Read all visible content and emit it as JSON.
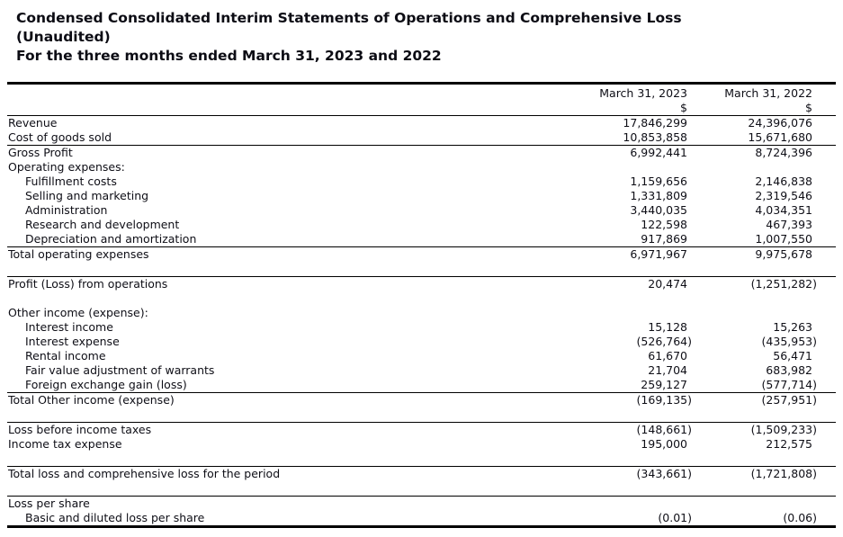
{
  "header": {
    "title_line1": "Condensed Consolidated Interim Statements of Operations and Comprehensive Loss",
    "title_line2": "(Unaudited)",
    "subtitle": "For the three months ended March 31, 2023 and 2022"
  },
  "statement": {
    "columns": [
      "March 31, 2023",
      "March 31, 2022"
    ],
    "currency_row": [
      "$",
      "$"
    ],
    "colors": {
      "text": "#0e0e16",
      "rule": "#000000",
      "background": "#ffffff"
    },
    "rows": [
      {
        "label": "Revenue",
        "values": [
          "17,846,299",
          "24,396,076"
        ]
      },
      {
        "label": "Cost of goods sold",
        "values": [
          "10,853,858",
          "15,671,680"
        ],
        "rule": true
      },
      {
        "label": "Gross Profit",
        "values": [
          "6,992,441",
          "8,724,396"
        ]
      },
      {
        "label": "Operating expenses:",
        "values": [
          "",
          ""
        ]
      },
      {
        "label": "Fulfillment costs",
        "indent": true,
        "values": [
          "1,159,656",
          "2,146,838"
        ]
      },
      {
        "label": "Selling and marketing",
        "indent": true,
        "values": [
          "1,331,809",
          "2,319,546"
        ]
      },
      {
        "label": "Administration",
        "indent": true,
        "values": [
          "3,440,035",
          "4,034,351"
        ]
      },
      {
        "label": "Research and development",
        "indent": true,
        "values": [
          "122,598",
          "467,393"
        ]
      },
      {
        "label": "Depreciation and amortization",
        "indent": true,
        "values": [
          "917,869",
          "1,007,550"
        ],
        "rule": true
      },
      {
        "label": "Total operating expenses",
        "values": [
          "6,971,967",
          "9,975,678"
        ]
      },
      {
        "spacer": true,
        "rule": true
      },
      {
        "label": "Profit (Loss) from operations",
        "values": [
          "20,474",
          "(1,251,282)"
        ]
      },
      {
        "spacer": true
      },
      {
        "label": "Other income (expense):",
        "values": [
          "",
          ""
        ]
      },
      {
        "label": "Interest income",
        "indent": true,
        "values": [
          "15,128",
          "15,263"
        ]
      },
      {
        "label": "Interest expense",
        "indent": true,
        "values": [
          "(526,764)",
          "(435,953)"
        ]
      },
      {
        "label": "Rental income",
        "indent": true,
        "values": [
          "61,670",
          "56,471"
        ]
      },
      {
        "label": "Fair value adjustment of warrants",
        "indent": true,
        "values": [
          "21,704",
          "683,982"
        ]
      },
      {
        "label": "Foreign exchange gain (loss)",
        "indent": true,
        "values": [
          "259,127",
          "(577,714)"
        ],
        "rule": true
      },
      {
        "label": "Total Other income (expense)",
        "values": [
          "(169,135)",
          "(257,951)"
        ]
      },
      {
        "spacer": true,
        "rule": true
      },
      {
        "label": "Loss before income taxes",
        "values": [
          "(148,661)",
          "(1,509,233)"
        ]
      },
      {
        "label": "Income tax expense",
        "values": [
          "195,000",
          "212,575"
        ]
      },
      {
        "spacer": true,
        "rule": true
      },
      {
        "label": "Total loss and comprehensive loss for the period",
        "values": [
          "(343,661)",
          "(1,721,808)"
        ]
      },
      {
        "spacer": true,
        "rule": true
      },
      {
        "label": "Loss per share",
        "values": [
          "",
          ""
        ]
      },
      {
        "label": "Basic and diluted loss per share",
        "indent": true,
        "values": [
          "(0.01)",
          "(0.06)"
        ]
      }
    ]
  }
}
